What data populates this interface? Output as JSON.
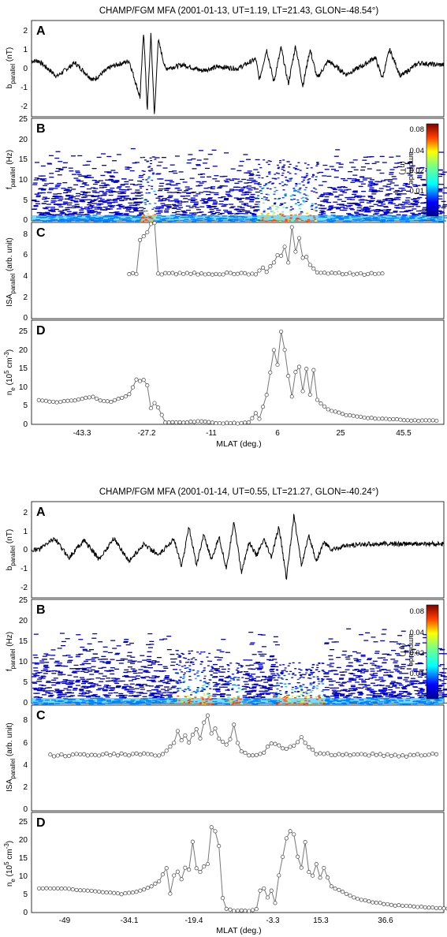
{
  "figure": {
    "panels": [
      {
        "title": "CHAMP/FGM MFA (2001-01-13, UT=1.19, LT=21.43, GLON=-48.54°)",
        "xlabel": "MLAT (deg.)",
        "xticks": [
          "-43.3",
          "-27.2",
          "-11",
          "6",
          "25",
          "45.5"
        ]
      },
      {
        "title": "CHAMP/FGM MFA (2001-01-14, UT=0.55, LT=21.27, GLON=-40.24°)",
        "xlabel": "MLAT (deg.)",
        "xticks": [
          "-49",
          "-34.1",
          "-19.4",
          "-3.3",
          "15.3",
          "36.6"
        ]
      }
    ],
    "labels": {
      "A": "A",
      "B": "B",
      "C": "C",
      "D": "D",
      "ylabel_b": "b",
      "ylabel_b_sub": "parallel",
      "ylabel_b_unit": " (nT)",
      "ylabel_f": "f",
      "ylabel_f_sub": "parallel",
      "ylabel_f_unit": " (Hz)",
      "ylabel_isa": "ISA",
      "ylabel_isa_sub": "parallel",
      "ylabel_isa_unit": " (arb. unit)",
      "ylabel_n": "n",
      "ylabel_n_sub": "e",
      "ylabel_n_unit": " (10",
      "ylabel_n_exp1": "5",
      "ylabel_n_cm": " cm",
      "ylabel_n_exp2": "-3",
      "ylabel_n_close": ")",
      "colorbar_label": "amplitude",
      "colorbar_unit": "(nT)",
      "colorbar_ticks": [
        "0.08",
        "0.04",
        "0.02",
        "0.01"
      ]
    }
  },
  "chart_data": [
    {
      "type": "line",
      "title": "CHAMP/FGM MFA (2001-01-13, UT=1.19, LT=21.43, GLON=-48.54°)",
      "xlabel": "MLAT (deg.)",
      "x_ticks": [
        -43.3,
        -27.2,
        -11,
        6,
        25,
        45.5
      ],
      "panel_A": {
        "ylabel": "b_parallel (nT)",
        "ylim": [
          -2.5,
          2.5
        ],
        "yticks": [
          -2,
          -1,
          0,
          1,
          2
        ],
        "x": [
          -55,
          -50,
          -45,
          -40,
          -35,
          -30,
          -27,
          -26,
          -25,
          -24,
          -23,
          -22,
          -20,
          -15,
          -10,
          -5,
          0,
          5,
          6,
          8,
          10,
          12,
          14,
          16,
          18,
          20,
          22,
          25,
          30,
          35,
          38,
          40,
          42,
          45,
          50,
          55
        ],
        "y": [
          0.4,
          -0.4,
          0.3,
          -0.6,
          0.1,
          0.4,
          -1.5,
          2.0,
          -2.2,
          1.8,
          -2.5,
          1.5,
          0.0,
          0.2,
          -0.1,
          0.1,
          0.0,
          0.5,
          -0.6,
          1.0,
          -0.7,
          1.1,
          -0.8,
          1.2,
          -0.9,
          1.0,
          -0.5,
          0.4,
          -0.3,
          0.2,
          0.6,
          -0.5,
          1.0,
          -0.4,
          0.3,
          0.2
        ]
      },
      "panel_B": {
        "ylabel": "f_parallel (Hz)",
        "ylim": [
          0,
          25
        ],
        "yticks": [
          0,
          5,
          10,
          15,
          20,
          25
        ],
        "colorbar": "amplitude (nT)",
        "colorbar_ticks": [
          0.01,
          0.02,
          0.04,
          0.08
        ],
        "enhanced_regions": [
          {
            "x_range": [
              -27.2,
              -23
            ],
            "max_freq": 16
          },
          {
            "x_range": [
              5,
              22
            ],
            "max_freq": 15
          }
        ]
      },
      "panel_C": {
        "ylabel": "ISA_parallel (arb. unit)",
        "ylim": [
          0,
          9
        ],
        "yticks": [
          0,
          2,
          4,
          6,
          8
        ],
        "x": [
          -30,
          -28,
          -27.5,
          -27,
          -26.5,
          -26,
          -25.5,
          -25,
          -24.5,
          -24,
          -23.5,
          -23,
          -22.5,
          -22,
          -10,
          0,
          5,
          6,
          7,
          8,
          9,
          10,
          11,
          12,
          13,
          14,
          15,
          16,
          17,
          18,
          19,
          20,
          21,
          22,
          23,
          30,
          40
        ],
        "y": [
          4.2,
          4.2,
          7.8,
          7.4,
          7.0,
          7.8,
          6.8,
          8.0,
          7.5,
          8.8,
          8.5,
          9.0,
          4.8,
          4.2,
          4.2,
          4.2,
          4.2,
          4.5,
          4.8,
          4.3,
          4.8,
          5.2,
          6.0,
          5.8,
          6.8,
          5.2,
          8.5,
          6.2,
          7.5,
          5.6,
          5.8,
          5.0,
          4.6,
          4.4,
          4.2,
          4.2,
          4.2
        ]
      },
      "panel_D": {
        "ylabel": "n_e (10^5 cm^-3)",
        "ylim": [
          0,
          28
        ],
        "yticks": [
          0,
          5,
          10,
          15,
          20,
          25
        ],
        "x": [
          -55,
          -50,
          -45,
          -40,
          -38,
          -35,
          -30,
          -28,
          -27.2,
          -26.5,
          -26,
          -25,
          -24.5,
          -23.5,
          -22.5,
          -20,
          -15,
          -11,
          -5,
          0,
          3,
          5,
          6,
          8,
          9,
          10,
          11,
          12,
          13,
          14,
          15,
          16,
          17,
          18,
          19,
          20,
          21,
          22,
          25,
          30,
          35,
          40,
          45,
          50,
          55
        ],
        "y": [
          6.5,
          6.0,
          6.5,
          7.5,
          6.5,
          6.0,
          8.0,
          12.0,
          15.5,
          2.0,
          12.0,
          10.5,
          2.5,
          6.0,
          5.5,
          0.5,
          0.5,
          0.8,
          0.3,
          0.3,
          0.5,
          3.0,
          1.5,
          8.0,
          14.0,
          20.0,
          16.0,
          25.0,
          20.0,
          13.0,
          7.5,
          14.0,
          15.5,
          9.0,
          15.0,
          8.0,
          14.5,
          6.5,
          4.0,
          2.5,
          1.8,
          1.5,
          1.2,
          1.0,
          1.0
        ]
      }
    },
    {
      "type": "line",
      "title": "CHAMP/FGM MFA (2001-01-14, UT=0.55, LT=21.27, GLON=-40.24°)",
      "xlabel": "MLAT (deg.)",
      "x_ticks": [
        -49,
        -34.1,
        -19.4,
        -3.3,
        15.3,
        36.6
      ],
      "panel_A": {
        "ylabel": "b_parallel (nT)",
        "ylim": [
          -2.5,
          2.5
        ],
        "yticks": [
          -2,
          -1,
          0,
          1,
          2
        ],
        "x": [
          -58,
          -54,
          -50,
          -46,
          -42,
          -38,
          -34,
          -30,
          -26,
          -22,
          -20,
          -18,
          -16,
          -14,
          -12,
          -10,
          -8,
          -6,
          -4,
          -2,
          0,
          2,
          4,
          6,
          8,
          10,
          12,
          14,
          16,
          18,
          20,
          24,
          30,
          40,
          50
        ],
        "y": [
          0.0,
          0.6,
          -0.4,
          0.5,
          -0.5,
          0.6,
          -0.6,
          0.3,
          -0.3,
          0.6,
          -0.9,
          1.2,
          -0.8,
          0.8,
          -0.6,
          0.7,
          -1.0,
          1.5,
          -1.2,
          0.4,
          -0.3,
          0.5,
          -0.4,
          1.2,
          -1.5,
          1.8,
          -0.8,
          0.7,
          -0.6,
          0.4,
          0.0,
          0.2,
          0.3,
          0.3,
          0.3
        ]
      },
      "panel_B": {
        "ylabel": "f_parallel (Hz)",
        "ylim": [
          0,
          25
        ],
        "yticks": [
          0,
          5,
          10,
          15,
          20,
          25
        ],
        "colorbar": "amplitude (nT)",
        "colorbar_ticks": [
          0.01,
          0.02,
          0.04,
          0.08
        ],
        "enhanced_regions": [
          {
            "x_range": [
              -22,
              -12
            ],
            "max_freq": 13
          },
          {
            "x_range": [
              -8,
              -4
            ],
            "max_freq": 10
          },
          {
            "x_range": [
              5,
              18
            ],
            "max_freq": 10
          }
        ]
      },
      "panel_C": {
        "ylabel": "ISA_parallel (arb. unit)",
        "ylim": [
          0,
          9
        ],
        "yticks": [
          0,
          2,
          4,
          6,
          8
        ],
        "x": [
          -55,
          -45,
          -35,
          -25,
          -22,
          -21,
          -20,
          -19,
          -18,
          -17,
          -16,
          -15,
          -14,
          -13,
          -12,
          -11,
          -10,
          -9,
          -8,
          -7,
          -6,
          -5,
          -4,
          -2,
          0,
          2,
          4,
          6,
          8,
          10,
          12,
          14,
          16,
          20,
          30,
          40,
          48
        ],
        "y": [
          4.7,
          4.8,
          4.8,
          4.8,
          5.8,
          6.8,
          6.0,
          6.5,
          5.8,
          6.5,
          7.0,
          6.2,
          7.5,
          8.2,
          6.5,
          7.0,
          6.2,
          5.8,
          5.6,
          6.0,
          7.3,
          5.8,
          5.0,
          4.8,
          4.8,
          5.0,
          5.8,
          5.5,
          5.2,
          5.6,
          6.2,
          5.5,
          4.8,
          4.8,
          4.8,
          4.7,
          4.9
        ]
      },
      "panel_D": {
        "ylabel": "n_e (10^5 cm^-3)",
        "ylim": [
          0,
          27
        ],
        "yticks": [
          0,
          5,
          10,
          15,
          20,
          25
        ],
        "x": [
          -58,
          -52,
          -46,
          -40,
          -36,
          -32,
          -28,
          -26,
          -24,
          -23,
          -22,
          -21,
          -20,
          -19,
          -18,
          -17,
          -16,
          -15,
          -14,
          -13,
          -12,
          -11,
          -10,
          -9,
          -8,
          -6,
          -4,
          -2,
          0,
          1,
          2,
          3,
          4,
          5,
          6,
          7,
          8,
          9,
          10,
          11,
          12,
          13,
          14,
          15,
          16,
          17,
          18,
          20,
          22,
          26,
          30,
          36,
          44,
          52
        ],
        "y": [
          6.5,
          6.5,
          6.0,
          5.5,
          5.0,
          5.5,
          7.0,
          8.5,
          12.0,
          5.0,
          10.0,
          11.0,
          9.0,
          12.0,
          11.5,
          19.0,
          12.0,
          11.0,
          12.5,
          13.0,
          23.0,
          22.0,
          18.0,
          4.0,
          1.0,
          0.5,
          0.5,
          0.5,
          1.0,
          6.0,
          6.5,
          4.0,
          6.0,
          2.5,
          10.0,
          15.0,
          20.0,
          22.0,
          21.0,
          15.0,
          12.0,
          19.0,
          11.0,
          10.0,
          13.0,
          9.5,
          12.0,
          7.0,
          6.0,
          4.0,
          3.0,
          2.0,
          1.5,
          1.0
        ]
      }
    }
  ]
}
